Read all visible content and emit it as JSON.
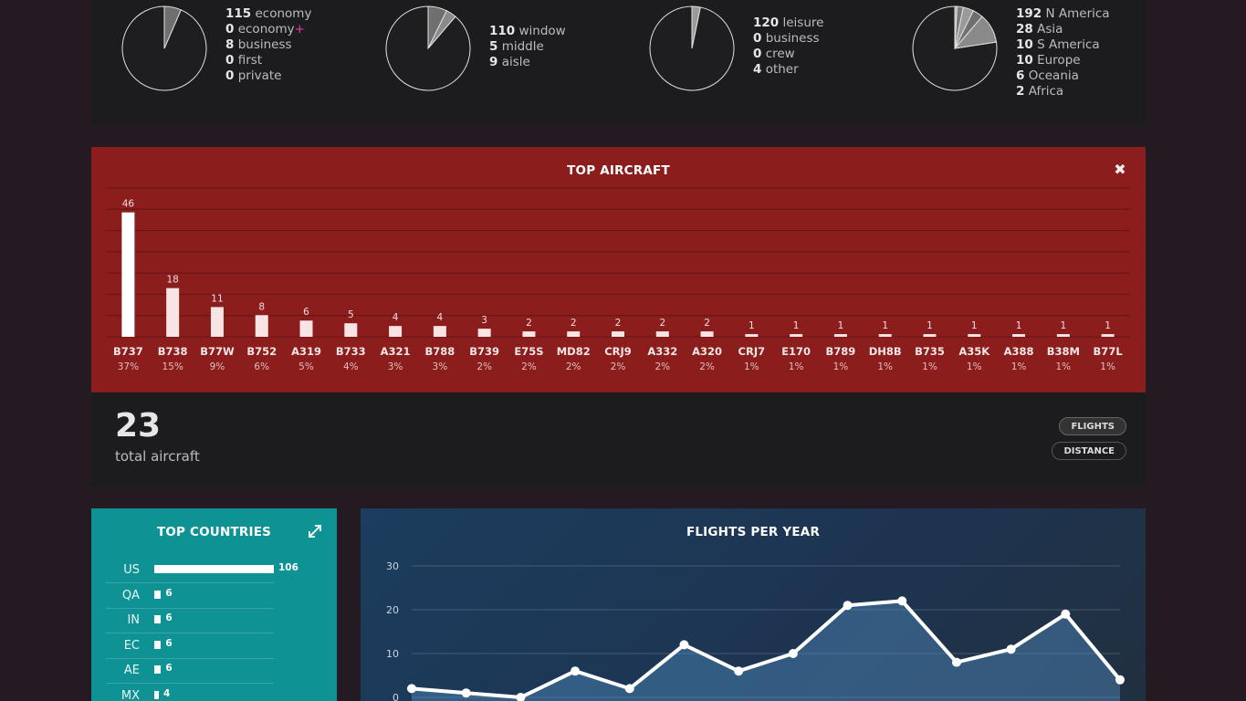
{
  "pies": [
    {
      "items": [
        {
          "value": "115",
          "label": "economy"
        },
        {
          "value": "0",
          "label": "economy",
          "suffix": "+"
        },
        {
          "value": "8",
          "label": "business"
        },
        {
          "value": "0",
          "label": "first"
        },
        {
          "value": "0",
          "label": "private"
        }
      ],
      "slices": [
        115,
        0,
        8,
        0,
        0
      ]
    },
    {
      "items": [
        {
          "value": "110",
          "label": "window"
        },
        {
          "value": "5",
          "label": "middle"
        },
        {
          "value": "9",
          "label": "aisle"
        }
      ],
      "slices": [
        110,
        5,
        9
      ]
    },
    {
      "items": [
        {
          "value": "120",
          "label": "leisure"
        },
        {
          "value": "0",
          "label": "business"
        },
        {
          "value": "0",
          "label": "crew"
        },
        {
          "value": "4",
          "label": "other"
        }
      ],
      "slices": [
        120,
        0,
        0,
        4
      ]
    },
    {
      "items": [
        {
          "value": "192",
          "label": "N America"
        },
        {
          "value": "28",
          "label": "Asia"
        },
        {
          "value": "10",
          "label": "S America"
        },
        {
          "value": "10",
          "label": "Europe"
        },
        {
          "value": "6",
          "label": "Oceania"
        },
        {
          "value": "2",
          "label": "Africa"
        }
      ],
      "slices": [
        192,
        28,
        10,
        10,
        6,
        2
      ]
    }
  ],
  "top_aircraft": {
    "title": "TOP AIRCRAFT",
    "close_icon": "close-icon",
    "accent": "#8b1d1d"
  },
  "total": {
    "number": "23",
    "label": "total aircraft",
    "buttons": {
      "flights": "FLIGHTS",
      "distance": "DISTANCE"
    }
  },
  "top_countries": {
    "title": "TOP COUNTRIES",
    "expand_icon": "expand-icon",
    "accent": "#0f9294",
    "rows": [
      {
        "code": "US",
        "value": 106
      },
      {
        "code": "QA",
        "value": 6
      },
      {
        "code": "IN",
        "value": 6
      },
      {
        "code": "EC",
        "value": 6
      },
      {
        "code": "AE",
        "value": 6
      },
      {
        "code": "MX",
        "value": 4
      }
    ]
  },
  "flights_per_year": {
    "title": "FLIGHTS PER YEAR"
  },
  "chart_data": [
    {
      "type": "bar",
      "title": "TOP AIRCRAFT",
      "categories": [
        "B737",
        "B738",
        "B77W",
        "B752",
        "A319",
        "B733",
        "A321",
        "B788",
        "B739",
        "E75S",
        "MD82",
        "CRJ9",
        "A332",
        "A320",
        "CRJ7",
        "E170",
        "B789",
        "DH8B",
        "B735",
        "A35K",
        "A388",
        "B38M",
        "B77L"
      ],
      "values": [
        46,
        18,
        11,
        8,
        6,
        5,
        4,
        4,
        3,
        2,
        2,
        2,
        2,
        2,
        1,
        1,
        1,
        1,
        1,
        1,
        1,
        1,
        1
      ],
      "percents": [
        "37%",
        "15%",
        "9%",
        "6%",
        "5%",
        "4%",
        "3%",
        "3%",
        "2%",
        "2%",
        "2%",
        "2%",
        "2%",
        "2%",
        "1%",
        "1%",
        "1%",
        "1%",
        "1%",
        "1%",
        "1%",
        "1%",
        "1%"
      ],
      "ylim": [
        0,
        55
      ],
      "grid": true
    },
    {
      "type": "area",
      "title": "FLIGHTS PER YEAR",
      "y_ticks": [
        "0",
        "10",
        "20",
        "30"
      ],
      "ylim": [
        0,
        32
      ],
      "values": [
        2,
        1,
        0,
        6,
        2,
        12,
        6,
        10,
        21,
        22,
        8,
        11,
        19,
        4
      ],
      "grid": true
    }
  ]
}
